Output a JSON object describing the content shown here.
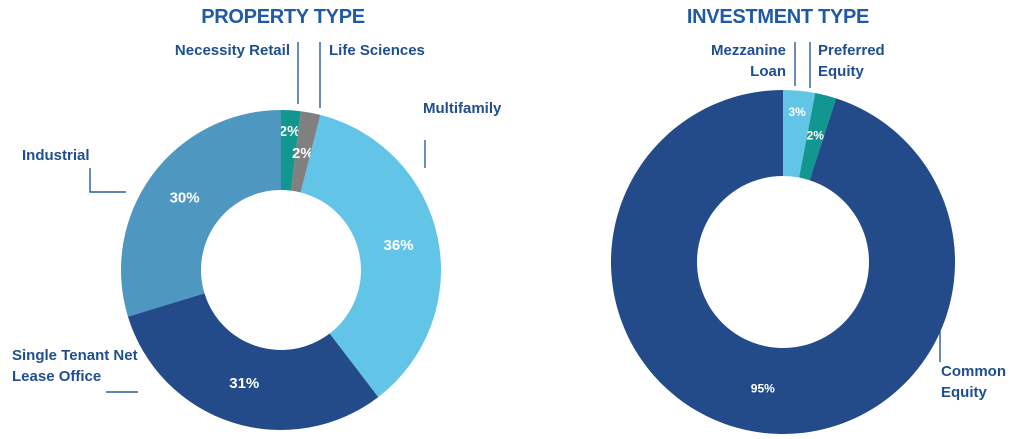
{
  "chart_data": [
    {
      "type": "donut",
      "title": "PROPERTY TYPE",
      "categories": [
        "Necessity Retail",
        "Life Sciences",
        "Multifamily",
        "Single Tenant Net Lease Office",
        "Industrial"
      ],
      "values": [
        2,
        2,
        36,
        31,
        30
      ],
      "value_labels": [
        "2%",
        "2%",
        "36%",
        "31%",
        "30%"
      ],
      "colors": [
        "#11978f",
        "#808080",
        "#62c4e6",
        "#234b89",
        "#4e97c1"
      ]
    },
    {
      "type": "donut",
      "title": "INVESTMENT TYPE",
      "categories": [
        "Mezzanine Loan",
        "Preferred Equity",
        "Common Equity"
      ],
      "values": [
        3,
        2,
        95
      ],
      "value_labels": [
        "3%",
        "2%",
        "95%"
      ],
      "colors": [
        "#62c4e6",
        "#11978f",
        "#234b89"
      ]
    }
  ]
}
